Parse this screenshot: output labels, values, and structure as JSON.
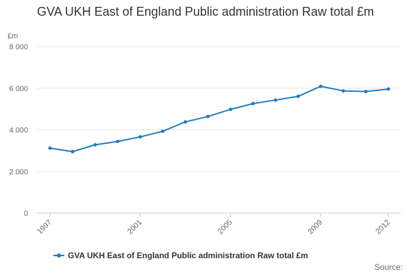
{
  "chart_data": {
    "type": "line",
    "title": "GVA UKH East of England Public administration Raw total £m",
    "ylabel": "£m",
    "xlabel": "",
    "ylim": [
      0,
      8000
    ],
    "yticks": [
      0,
      2000,
      4000,
      6000,
      8000
    ],
    "ytick_labels": [
      "0",
      "2 000",
      "4 000",
      "6 000",
      "8 000"
    ],
    "xtick_labels": [
      "1997",
      "2001",
      "2005",
      "2009",
      "2012"
    ],
    "x": [
      1997,
      1998,
      1999,
      2000,
      2001,
      2002,
      2003,
      2004,
      2005,
      2006,
      2007,
      2008,
      2009,
      2010,
      2011,
      2012
    ],
    "series": [
      {
        "name": "GVA UKH East of England Public administration Raw total £m",
        "color": "#1f7bc0",
        "values": [
          3120,
          2950,
          3280,
          3440,
          3660,
          3930,
          4380,
          4640,
          4980,
          5260,
          5430,
          5610,
          6090,
          5870,
          5840,
          5960
        ]
      }
    ],
    "grid": true,
    "legend": "bottom"
  },
  "source_label": "Source:"
}
